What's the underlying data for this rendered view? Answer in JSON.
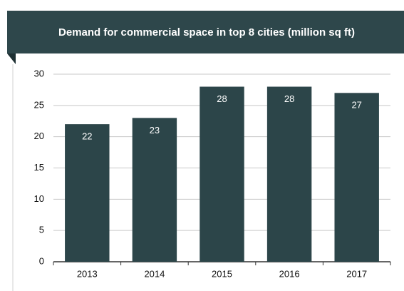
{
  "chart_data": {
    "type": "bar",
    "title": "Demand for commercial space in top 8 cities (million sq ft)",
    "categories": [
      "2013",
      "2014",
      "2015",
      "2016",
      "2017"
    ],
    "values": [
      22,
      23,
      28,
      28,
      27
    ],
    "color": "#2c4549",
    "ylim": [
      0,
      30
    ],
    "yticks": [
      0,
      5,
      10,
      15,
      20,
      25,
      30
    ],
    "grid": true
  }
}
